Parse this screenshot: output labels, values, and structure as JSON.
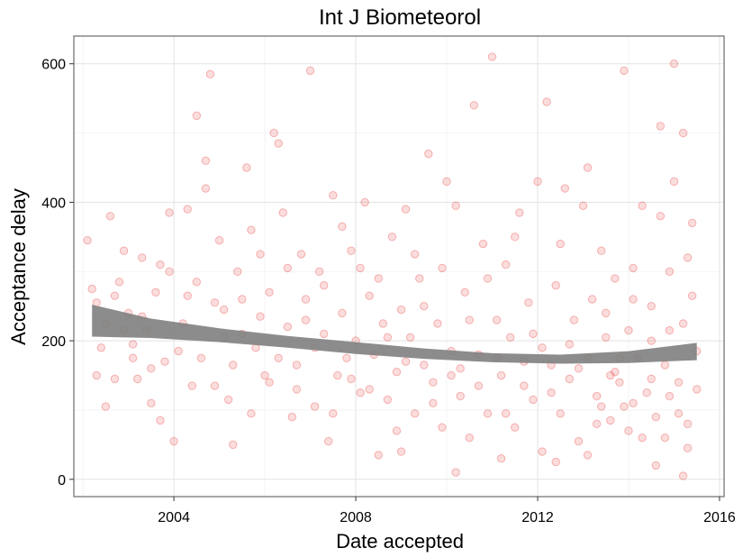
{
  "chart_data": {
    "type": "scatter",
    "title": "Int J Biometeorol",
    "xlabel": "Date accepted",
    "ylabel": "Acceptance delay",
    "x_range": [
      2001.8,
      2016.1
    ],
    "y_range": [
      -25,
      640
    ],
    "x_ticks": [
      2004,
      2008,
      2012,
      2016
    ],
    "y_ticks": [
      0,
      200,
      400,
      600
    ],
    "x_minor_ticks": [
      2002,
      2006,
      2010,
      2014
    ],
    "y_minor_ticks": [
      100,
      300,
      500
    ],
    "grid": true,
    "legend": "none",
    "point_color": "#e41a1c",
    "smooth_color": "#808080",
    "x_tick_labels": [
      "2004",
      "2008",
      "2012",
      "2016"
    ],
    "y_tick_labels": [
      "0",
      "200",
      "400",
      "600"
    ],
    "smooth": {
      "x": [
        2002.2,
        2003.5,
        2005.0,
        2006.5,
        2008.0,
        2009.5,
        2011.0,
        2012.5,
        2014.0,
        2015.5
      ],
      "lower": [
        206,
        204,
        198,
        190,
        181,
        174,
        169,
        167,
        168,
        172
      ],
      "upper": [
        252,
        232,
        218,
        207,
        198,
        189,
        182,
        180,
        185,
        197
      ]
    },
    "points": [
      [
        2002.1,
        345
      ],
      [
        2002.2,
        275
      ],
      [
        2002.3,
        255
      ],
      [
        2002.4,
        190
      ],
      [
        2002.5,
        225
      ],
      [
        2002.6,
        380
      ],
      [
        2002.7,
        145
      ],
      [
        2002.8,
        285
      ],
      [
        2002.9,
        330
      ],
      [
        2003.0,
        240
      ],
      [
        2003.1,
        195
      ],
      [
        2003.2,
        145
      ],
      [
        2003.3,
        235
      ],
      [
        2003.4,
        215
      ],
      [
        2003.5,
        110
      ],
      [
        2003.6,
        270
      ],
      [
        2003.7,
        310
      ],
      [
        2003.8,
        170
      ],
      [
        2003.9,
        300
      ],
      [
        2004.0,
        55
      ],
      [
        2002.3,
        150
      ],
      [
        2002.5,
        105
      ],
      [
        2002.7,
        265
      ],
      [
        2002.9,
        215
      ],
      [
        2003.1,
        175
      ],
      [
        2003.3,
        320
      ],
      [
        2003.5,
        160
      ],
      [
        2003.7,
        85
      ],
      [
        2003.9,
        385
      ],
      [
        2004.1,
        185
      ],
      [
        2004.2,
        225
      ],
      [
        2004.3,
        265
      ],
      [
        2004.4,
        135
      ],
      [
        2004.5,
        525
      ],
      [
        2004.6,
        175
      ],
      [
        2004.7,
        460
      ],
      [
        2004.8,
        585
      ],
      [
        2004.9,
        255
      ],
      [
        2005.0,
        345
      ],
      [
        2005.1,
        245
      ],
      [
        2005.2,
        115
      ],
      [
        2005.3,
        165
      ],
      [
        2005.4,
        300
      ],
      [
        2005.5,
        210
      ],
      [
        2005.6,
        450
      ],
      [
        2005.7,
        95
      ],
      [
        2005.8,
        190
      ],
      [
        2005.9,
        325
      ],
      [
        2006.0,
        150
      ],
      [
        2006.1,
        270
      ],
      [
        2004.3,
        390
      ],
      [
        2004.5,
        285
      ],
      [
        2004.7,
        420
      ],
      [
        2004.9,
        135
      ],
      [
        2005.1,
        205
      ],
      [
        2005.3,
        50
      ],
      [
        2005.5,
        260
      ],
      [
        2005.7,
        360
      ],
      [
        2005.9,
        235
      ],
      [
        2006.1,
        140
      ],
      [
        2006.2,
        500
      ],
      [
        2006.3,
        485
      ],
      [
        2006.4,
        385
      ],
      [
        2006.5,
        220
      ],
      [
        2006.6,
        90
      ],
      [
        2006.7,
        165
      ],
      [
        2006.8,
        325
      ],
      [
        2006.9,
        260
      ],
      [
        2007.0,
        590
      ],
      [
        2007.1,
        105
      ],
      [
        2007.2,
        300
      ],
      [
        2007.3,
        210
      ],
      [
        2007.4,
        55
      ],
      [
        2007.5,
        410
      ],
      [
        2007.6,
        150
      ],
      [
        2007.7,
        240
      ],
      [
        2007.8,
        175
      ],
      [
        2007.9,
        330
      ],
      [
        2008.0,
        200
      ],
      [
        2008.1,
        125
      ],
      [
        2006.3,
        175
      ],
      [
        2006.5,
        305
      ],
      [
        2006.7,
        130
      ],
      [
        2006.9,
        230
      ],
      [
        2007.1,
        190
      ],
      [
        2007.3,
        280
      ],
      [
        2007.5,
        95
      ],
      [
        2007.7,
        365
      ],
      [
        2007.9,
        145
      ],
      [
        2008.1,
        305
      ],
      [
        2008.2,
        400
      ],
      [
        2008.3,
        265
      ],
      [
        2008.4,
        180
      ],
      [
        2008.5,
        35
      ],
      [
        2008.6,
        225
      ],
      [
        2008.7,
        115
      ],
      [
        2008.8,
        350
      ],
      [
        2008.9,
        155
      ],
      [
        2009.0,
        245
      ],
      [
        2009.1,
        390
      ],
      [
        2009.2,
        205
      ],
      [
        2009.3,
        95
      ],
      [
        2009.4,
        290
      ],
      [
        2009.5,
        165
      ],
      [
        2009.6,
        470
      ],
      [
        2009.7,
        140
      ],
      [
        2009.8,
        225
      ],
      [
        2009.9,
        75
      ],
      [
        2010.0,
        430
      ],
      [
        2010.1,
        185
      ],
      [
        2008.3,
        130
      ],
      [
        2008.5,
        290
      ],
      [
        2008.7,
        205
      ],
      [
        2008.9,
        70
      ],
      [
        2009.1,
        170
      ],
      [
        2009.3,
        325
      ],
      [
        2009.5,
        250
      ],
      [
        2009.7,
        110
      ],
      [
        2009.9,
        305
      ],
      [
        2010.1,
        150
      ],
      [
        2010.2,
        395
      ],
      [
        2010.3,
        120
      ],
      [
        2010.4,
        270
      ],
      [
        2010.5,
        60
      ],
      [
        2010.6,
        540
      ],
      [
        2010.7,
        180
      ],
      [
        2010.8,
        340
      ],
      [
        2010.9,
        95
      ],
      [
        2011.0,
        610
      ],
      [
        2011.1,
        230
      ],
      [
        2011.2,
        150
      ],
      [
        2011.3,
        310
      ],
      [
        2011.4,
        205
      ],
      [
        2011.5,
        75
      ],
      [
        2011.6,
        385
      ],
      [
        2011.7,
        170
      ],
      [
        2011.8,
        255
      ],
      [
        2011.9,
        115
      ],
      [
        2012.0,
        430
      ],
      [
        2012.1,
        190
      ],
      [
        2010.3,
        160
      ],
      [
        2010.5,
        230
      ],
      [
        2010.7,
        135
      ],
      [
        2010.9,
        290
      ],
      [
        2011.1,
        175
      ],
      [
        2011.3,
        95
      ],
      [
        2011.5,
        350
      ],
      [
        2011.7,
        135
      ],
      [
        2011.9,
        210
      ],
      [
        2012.1,
        40
      ],
      [
        2012.2,
        545
      ],
      [
        2012.3,
        165
      ],
      [
        2012.4,
        280
      ],
      [
        2012.5,
        95
      ],
      [
        2012.6,
        420
      ],
      [
        2012.7,
        145
      ],
      [
        2012.8,
        230
      ],
      [
        2012.9,
        55
      ],
      [
        2013.0,
        395
      ],
      [
        2013.1,
        175
      ],
      [
        2013.2,
        260
      ],
      [
        2013.3,
        120
      ],
      [
        2013.4,
        330
      ],
      [
        2013.5,
        205
      ],
      [
        2013.6,
        85
      ],
      [
        2013.7,
        290
      ],
      [
        2013.8,
        140
      ],
      [
        2013.9,
        590
      ],
      [
        2014.0,
        215
      ],
      [
        2014.1,
        110
      ],
      [
        2012.3,
        125
      ],
      [
        2012.5,
        340
      ],
      [
        2012.7,
        195
      ],
      [
        2012.9,
        160
      ],
      [
        2013.1,
        450
      ],
      [
        2013.3,
        80
      ],
      [
        2013.5,
        240
      ],
      [
        2013.7,
        155
      ],
      [
        2013.9,
        105
      ],
      [
        2014.1,
        305
      ],
      [
        2014.2,
        175
      ],
      [
        2014.3,
        395
      ],
      [
        2014.4,
        125
      ],
      [
        2014.5,
        250
      ],
      [
        2014.6,
        90
      ],
      [
        2014.7,
        510
      ],
      [
        2014.8,
        165
      ],
      [
        2014.9,
        300
      ],
      [
        2015.0,
        600
      ],
      [
        2015.1,
        140
      ],
      [
        2015.2,
        225
      ],
      [
        2015.3,
        80
      ],
      [
        2015.4,
        370
      ],
      [
        2015.5,
        185
      ],
      [
        2015.2,
        500
      ],
      [
        2015.3,
        45
      ],
      [
        2015.4,
        265
      ],
      [
        2015.0,
        430
      ],
      [
        2014.9,
        120
      ],
      [
        2014.5,
        200
      ],
      [
        2014.3,
        60
      ],
      [
        2014.5,
        145
      ],
      [
        2014.7,
        380
      ],
      [
        2014.9,
        215
      ],
      [
        2015.1,
        95
      ],
      [
        2015.3,
        320
      ],
      [
        2015.5,
        130
      ],
      [
        2014.1,
        260
      ],
      [
        2013.8,
        175
      ],
      [
        2013.4,
        105
      ],
      [
        2015.2,
        5
      ],
      [
        2014.6,
        20
      ],
      [
        2013.1,
        35
      ],
      [
        2012.4,
        25
      ],
      [
        2011.2,
        30
      ],
      [
        2010.2,
        10
      ],
      [
        2009.0,
        40
      ],
      [
        2014.0,
        70
      ],
      [
        2014.8,
        60
      ],
      [
        2013.6,
        150
      ]
    ]
  }
}
